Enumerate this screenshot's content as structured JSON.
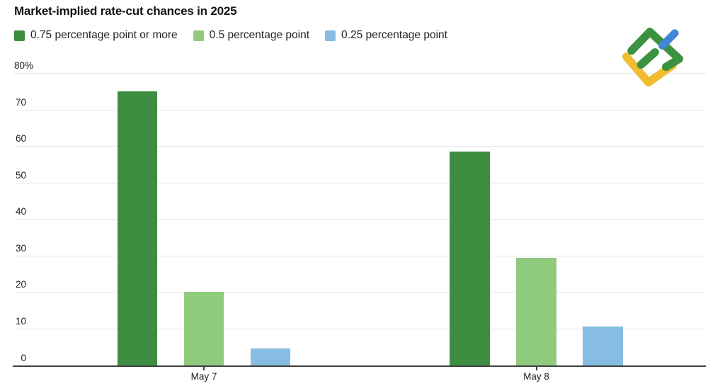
{
  "chart_data": {
    "type": "bar",
    "title": "Market-implied rate-cut chances in 2025",
    "categories": [
      "May 7",
      "May 8"
    ],
    "series": [
      {
        "name": "0.75 percentage point or more",
        "color": "#3e8e41",
        "values": [
          74.9,
          58.5
        ]
      },
      {
        "name": "0.5 percentage point",
        "color": "#8fca7d",
        "values": [
          20.1,
          29.4
        ]
      },
      {
        "name": "0.25 percentage point",
        "color": "#87bde2",
        "values": [
          4.5,
          10.5
        ]
      }
    ],
    "ylim": [
      0,
      80
    ],
    "yticks": [
      0,
      10,
      20,
      30,
      40,
      50,
      60,
      70,
      80
    ],
    "ytick_labels": [
      "0",
      "10",
      "20",
      "30",
      "40",
      "50",
      "60",
      "70",
      "80%"
    ],
    "grid": true,
    "legend_position": "top-left",
    "unit": "percent"
  },
  "colors": {
    "gridline": "#e5e5e5",
    "axis": "#3f3f3f",
    "title_text": "#141414",
    "tick_text": "#202020"
  },
  "logo": {
    "name": "litefinance-logo",
    "green": "#3b9240",
    "yellow": "#f0bc31",
    "blue": "#4285d6"
  }
}
